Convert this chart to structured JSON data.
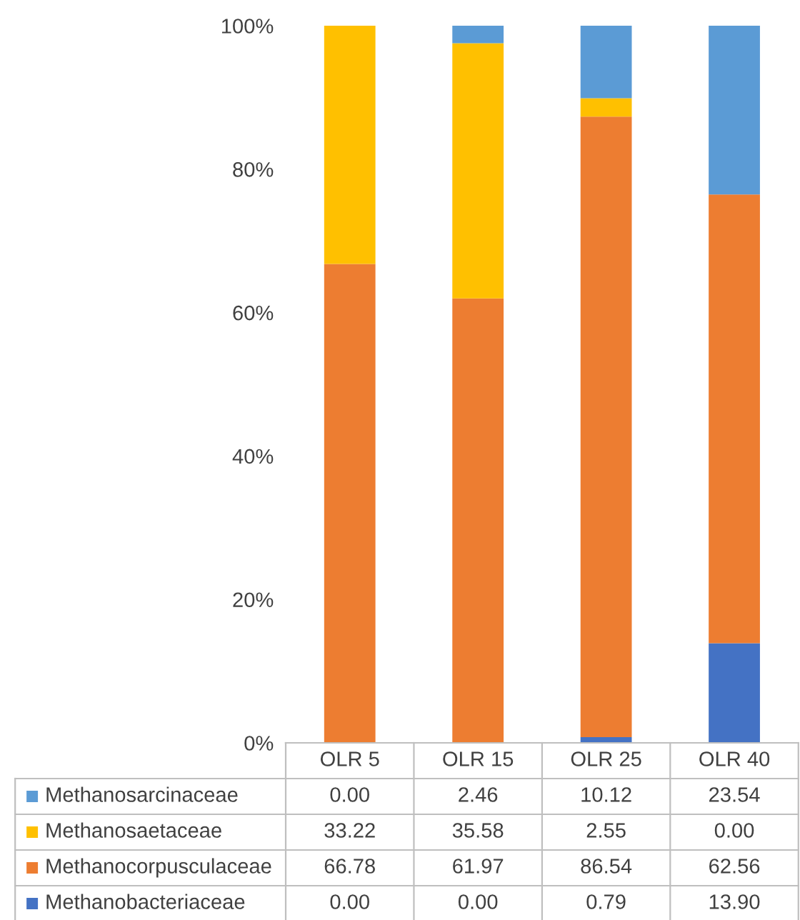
{
  "chart_data": {
    "type": "bar",
    "stacked": true,
    "categories": [
      "OLR 5",
      "OLR 15",
      "OLR 25",
      "OLR 40"
    ],
    "series": [
      {
        "name": "Methanobacteriaceae",
        "color": "#4472c4",
        "values": [
          0.0,
          0.0,
          0.79,
          13.9
        ],
        "value_labels": [
          "0.00",
          "0.00",
          "0.79",
          "13.90"
        ]
      },
      {
        "name": "Methanocorpusculaceae",
        "color": "#ed7d31",
        "values": [
          66.78,
          61.97,
          86.54,
          62.56
        ],
        "value_labels": [
          "66.78",
          "61.97",
          "86.54",
          "62.56"
        ]
      },
      {
        "name": "Methanosaetaceae",
        "color": "#ffc000",
        "values": [
          33.22,
          35.58,
          2.55,
          0.0
        ],
        "value_labels": [
          "33.22",
          "35.58",
          "2.55",
          "0.00"
        ]
      },
      {
        "name": "Methanosarcinaceae",
        "color": "#5b9bd5",
        "values": [
          0.0,
          2.46,
          10.12,
          23.54
        ],
        "value_labels": [
          "0.00",
          "2.46",
          "10.12",
          "23.54"
        ]
      }
    ],
    "ylim": [
      0,
      100
    ],
    "yticks": [
      {
        "value": 0,
        "label": "0%"
      },
      {
        "value": 20,
        "label": "20%"
      },
      {
        "value": 40,
        "label": "40%"
      },
      {
        "value": 60,
        "label": "60%"
      },
      {
        "value": 80,
        "label": "80%"
      },
      {
        "value": 100,
        "label": "100%"
      }
    ],
    "grid": false,
    "legend": "bottom left"
  }
}
